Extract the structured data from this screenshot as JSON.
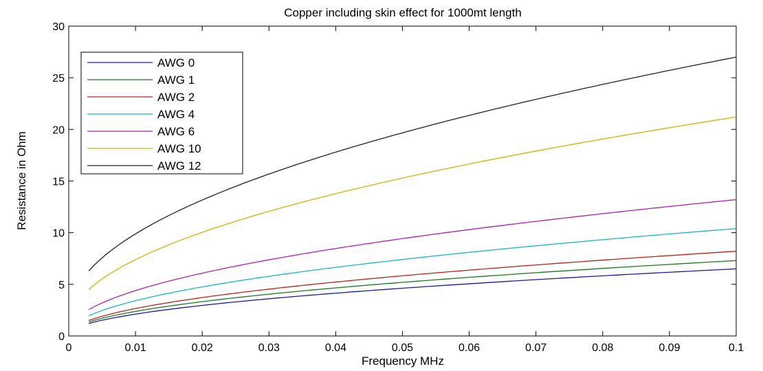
{
  "chart_data": {
    "type": "line",
    "title": "Copper including skin effect for 1000mt length",
    "xlabel": "Frequency MHz",
    "ylabel": "Resistance in Ohm",
    "xlim": [
      0,
      0.1
    ],
    "ylim": [
      0,
      30
    ],
    "x_ticks": [
      "0",
      "0.01",
      "0.02",
      "0.03",
      "0.04",
      "0.05",
      "0.06",
      "0.07",
      "0.08",
      "0.09",
      "0.1"
    ],
    "y_ticks": [
      "0",
      "5",
      "10",
      "15",
      "20",
      "25",
      "30"
    ],
    "grid": false,
    "legend_position": "top-left",
    "x_start": 0.003,
    "x_end": 0.1,
    "curve_shape": "sqrt",
    "series": [
      {
        "name": "AWG 0",
        "color": "#1a1aa8",
        "y_start": 1.2,
        "y_end": 6.5
      },
      {
        "name": "AWG 1",
        "color": "#1a7a1a",
        "y_start": 1.35,
        "y_end": 7.3
      },
      {
        "name": "AWG 2",
        "color": "#c0201a",
        "y_start": 1.5,
        "y_end": 8.2
      },
      {
        "name": "AWG 4",
        "color": "#10b8c8",
        "y_start": 1.95,
        "y_end": 10.4
      },
      {
        "name": "AWG 6",
        "color": "#b020b0",
        "y_start": 2.55,
        "y_end": 13.2
      },
      {
        "name": "AWG 10",
        "color": "#d4b000",
        "y_start": 4.5,
        "y_end": 21.2
      },
      {
        "name": "AWG 12",
        "color": "#202020",
        "y_start": 6.3,
        "y_end": 27.0
      }
    ]
  }
}
